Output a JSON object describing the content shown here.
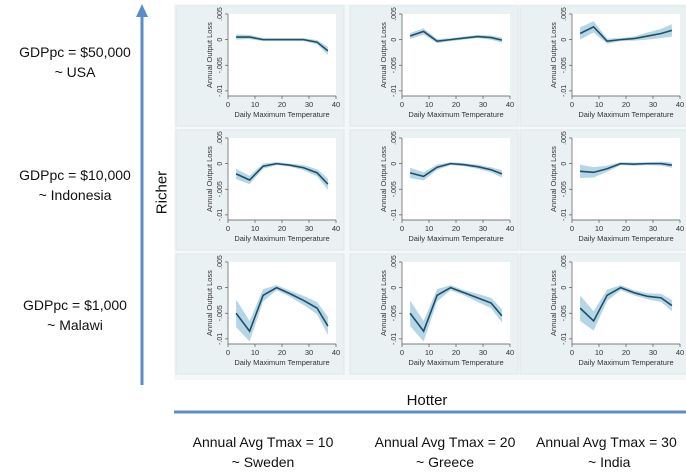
{
  "axes": {
    "vertical_label": "Richer",
    "horizontal_label": "Hotter"
  },
  "rows": [
    {
      "line1": "GDPpc = $50,000",
      "line2": "~ USA"
    },
    {
      "line1": "GDPpc = $10,000",
      "line2": "~ Indonesia"
    },
    {
      "line1": "GDPpc = $1,000",
      "line2": "~ Malawi"
    }
  ],
  "columns": [
    {
      "line1": "Annual Avg Tmax = 10",
      "line2": "~ Sweden"
    },
    {
      "line1": "Annual Avg Tmax = 20",
      "line2": "~ Greece"
    },
    {
      "line1": "Annual Avg Tmax = 30",
      "line2": "~ India"
    }
  ],
  "colors": {
    "arrow": "#5b8ec9",
    "panel_bg": "#eaf1f3",
    "grid_bg": "#f4f8f9",
    "line": "#1c4f6b",
    "band": "#a9cfe0"
  },
  "chart_data": {
    "type": "line",
    "layout": "3x3 small multiples",
    "xlabel": "Daily Maximum Temperature",
    "ylabel": "Annual Output Loss",
    "xlim": [
      0,
      40
    ],
    "ylim": [
      -0.011,
      0.005
    ],
    "xticks": [
      "0",
      "10",
      "20",
      "30",
      "40"
    ],
    "yticks": [
      ".005",
      "0",
      "-.005",
      "-.01"
    ],
    "ytick_values": [
      0.005,
      0,
      -0.005,
      -0.01
    ],
    "x": [
      3,
      8,
      13,
      18,
      23,
      28,
      33,
      37
    ],
    "panels": [
      {
        "row": 0,
        "col": 0,
        "y": [
          0.0005,
          0.0005,
          0.0,
          0.0,
          0.0,
          0.0,
          -0.0005,
          -0.0022
        ],
        "band": [
          0.0005,
          0.0004,
          0.0003,
          0.0003,
          0.0003,
          0.0003,
          0.0004,
          0.0008
        ]
      },
      {
        "row": 0,
        "col": 1,
        "y": [
          0.0007,
          0.0016,
          -0.0003,
          0.0,
          0.0003,
          0.0006,
          0.0004,
          -0.0001
        ],
        "band": [
          0.0006,
          0.0006,
          0.0004,
          0.0003,
          0.0003,
          0.0003,
          0.0004,
          0.0005
        ]
      },
      {
        "row": 0,
        "col": 2,
        "y": [
          0.0012,
          0.0025,
          -0.0003,
          0.0,
          0.0002,
          0.0007,
          0.0012,
          0.0018
        ],
        "band": [
          0.0012,
          0.0011,
          0.0005,
          0.0003,
          0.0004,
          0.0007,
          0.0009,
          0.0012
        ]
      },
      {
        "row": 1,
        "col": 0,
        "y": [
          -0.002,
          -0.0032,
          -0.0005,
          0.0,
          -0.0003,
          -0.0008,
          -0.0018,
          -0.004
        ],
        "band": [
          0.001,
          0.0008,
          0.0005,
          0.0003,
          0.0003,
          0.0005,
          0.0007,
          0.0011
        ]
      },
      {
        "row": 1,
        "col": 1,
        "y": [
          -0.0018,
          -0.0025,
          -0.0007,
          0.0,
          -0.0002,
          -0.0006,
          -0.0012,
          -0.002
        ],
        "band": [
          0.001,
          0.0008,
          0.0005,
          0.0003,
          0.0003,
          0.0004,
          0.0005,
          0.0007
        ]
      },
      {
        "row": 1,
        "col": 2,
        "y": [
          -0.0015,
          -0.0017,
          -0.001,
          0.0,
          -0.0001,
          0.0,
          0.0,
          -0.0003
        ],
        "band": [
          0.0013,
          0.001,
          0.0006,
          0.0003,
          0.0003,
          0.0003,
          0.0004,
          0.0005
        ]
      },
      {
        "row": 2,
        "col": 0,
        "y": [
          -0.005,
          -0.0085,
          -0.0015,
          0.0,
          -0.0012,
          -0.0025,
          -0.004,
          -0.0075
        ],
        "band": [
          0.0027,
          0.002,
          0.0012,
          0.0005,
          0.0006,
          0.0009,
          0.0012,
          0.0018
        ]
      },
      {
        "row": 2,
        "col": 1,
        "y": [
          -0.005,
          -0.0085,
          -0.0015,
          0.0,
          -0.001,
          -0.002,
          -0.003,
          -0.0055
        ],
        "band": [
          0.0025,
          0.002,
          0.0012,
          0.0005,
          0.0005,
          0.0008,
          0.001,
          0.0013
        ]
      },
      {
        "row": 2,
        "col": 2,
        "y": [
          -0.004,
          -0.0065,
          -0.0015,
          0.0,
          -0.001,
          -0.0017,
          -0.002,
          -0.0035
        ],
        "band": [
          0.0025,
          0.0019,
          0.0011,
          0.0005,
          0.0005,
          0.0006,
          0.0008,
          0.0011
        ]
      }
    ]
  }
}
